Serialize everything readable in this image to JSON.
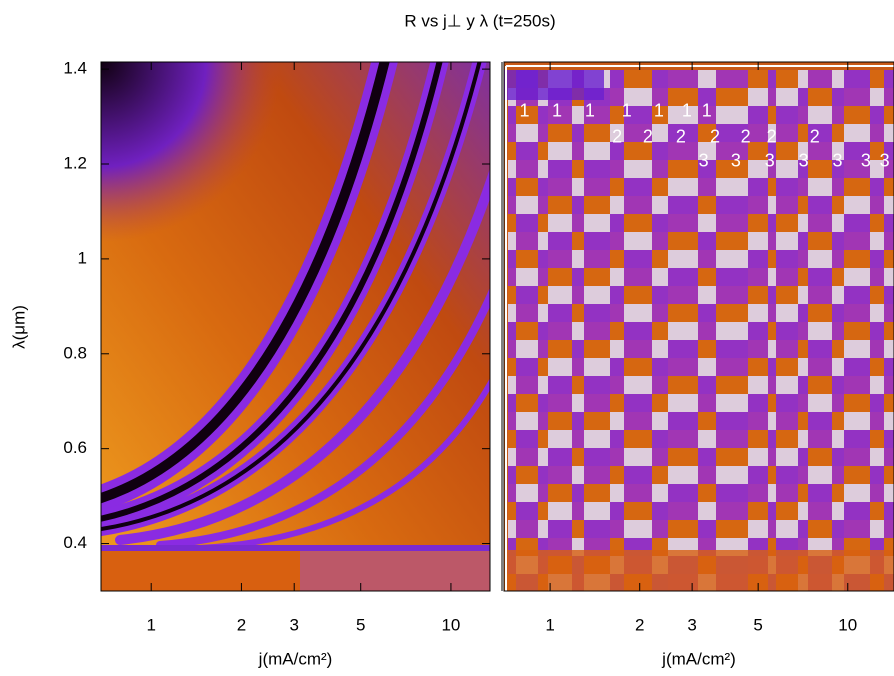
{
  "title": "R vs j⊥ y λ (t=250s)",
  "chart_data": [
    {
      "type": "heatmap",
      "xlabel": "j(mA/cm²)",
      "ylabel": "λ(μm)",
      "xscale": "log",
      "xlim": [
        0.68,
        13.5
      ],
      "ylim": [
        0.3,
        1.415
      ],
      "xticks": [
        1,
        2,
        3,
        5,
        10
      ],
      "yticks": [
        0.4,
        0.6,
        0.8,
        1,
        1.2,
        1.4
      ]
    },
    {
      "type": "heatmap",
      "xlabel": "j(mA/cm²)",
      "xscale": "log",
      "xlim": [
        0.7,
        14.3
      ],
      "ylim": [
        0.3,
        1.415
      ],
      "xticks": [
        1,
        2,
        3,
        5,
        10
      ],
      "annotations": [
        {
          "text": "1",
          "x": 0.82,
          "y": 1.31
        },
        {
          "text": "1",
          "x": 1.055,
          "y": 1.31
        },
        {
          "text": "1",
          "x": 1.36,
          "y": 1.31
        },
        {
          "text": "1",
          "x": 1.81,
          "y": 1.31
        },
        {
          "text": "1",
          "x": 2.32,
          "y": 1.31
        },
        {
          "text": "1",
          "x": 2.88,
          "y": 1.31
        },
        {
          "text": "1",
          "x": 3.36,
          "y": 1.31
        },
        {
          "text": "2",
          "x": 1.68,
          "y": 1.255
        },
        {
          "text": "2",
          "x": 2.13,
          "y": 1.255
        },
        {
          "text": "2",
          "x": 2.75,
          "y": 1.255
        },
        {
          "text": "2",
          "x": 3.58,
          "y": 1.255
        },
        {
          "text": "2",
          "x": 4.54,
          "y": 1.255
        },
        {
          "text": "2",
          "x": 5.55,
          "y": 1.255
        },
        {
          "text": "2",
          "x": 7.75,
          "y": 1.255
        },
        {
          "text": "3",
          "x": 3.28,
          "y": 1.205
        },
        {
          "text": "3",
          "x": 4.21,
          "y": 1.205
        },
        {
          "text": "3",
          "x": 5.47,
          "y": 1.205
        },
        {
          "text": "3",
          "x": 7.11,
          "y": 1.205
        },
        {
          "text": "3",
          "x": 9.24,
          "y": 1.205
        },
        {
          "text": "3",
          "x": 11.5,
          "y": 1.205
        },
        {
          "text": "3",
          "x": 13.3,
          "y": 1.205
        }
      ]
    }
  ]
}
